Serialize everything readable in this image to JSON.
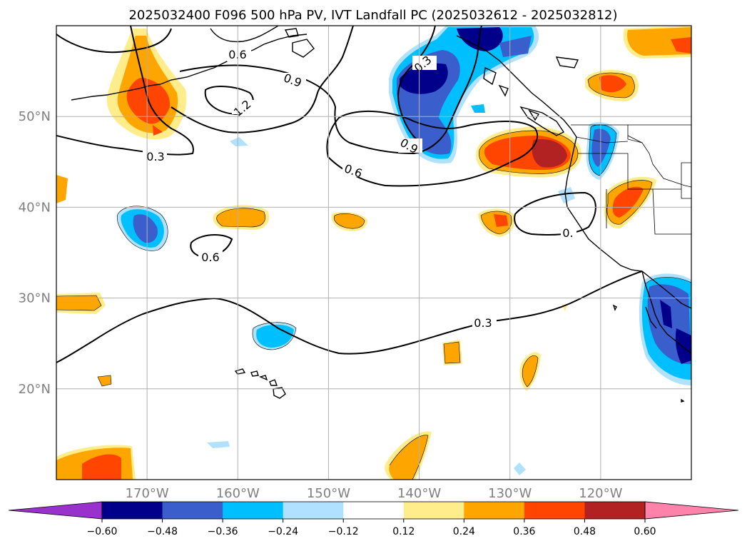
{
  "title": "2025032400 F096 500 hPa PV, IVT Landfall PC (2025032612 - 2025032812)",
  "map": {
    "lon_range": [
      -180,
      -110
    ],
    "lat_range": [
      10,
      60
    ],
    "lat_gridlines": [
      20,
      30,
      40,
      50
    ],
    "lon_gridlines": [
      -170,
      -160,
      -150,
      -140,
      -130,
      -120
    ],
    "lat_labels": [
      "20°N",
      "30°N",
      "40°N",
      "50°N"
    ],
    "lon_labels": [
      "170°W",
      "160°W",
      "150°W",
      "140°W",
      "130°W",
      "120°W"
    ]
  },
  "colorbar": {
    "levels": [
      -0.6,
      -0.48,
      -0.36,
      -0.24,
      -0.12,
      0.12,
      0.24,
      0.36,
      0.48,
      0.6
    ],
    "tick_labels": [
      "−0.60",
      "−0.48",
      "−0.36",
      "−0.24",
      "−0.12",
      "0.12",
      "0.24",
      "0.36",
      "0.48",
      "0.60"
    ],
    "colors": [
      "#9932cc",
      "#00008b",
      "#3a5fcd",
      "#00bfff",
      "#b0e2ff",
      "#ffffff",
      "#ffec8b",
      "#ffa500",
      "#ff4500",
      "#b22222",
      "#ff82ab"
    ]
  },
  "contour_labels": [
    "0.3",
    "0.3",
    "0.6",
    "0.6",
    "0.6",
    "0.9",
    "0.9",
    "1.2",
    "0.3",
    "0."
  ]
}
